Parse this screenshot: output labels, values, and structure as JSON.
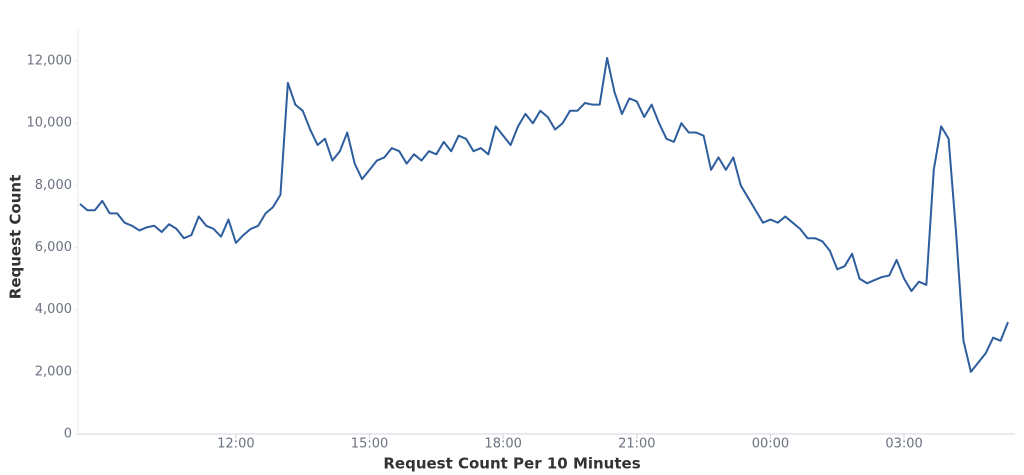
{
  "chart_data": {
    "type": "line",
    "x_label": "Request Count Per 10 Minutes",
    "y_label": "Request Count",
    "color": "#2e5e9e",
    "categories": [
      null,
      null,
      null,
      null,
      null,
      null,
      null,
      null,
      null,
      null,
      null,
      null,
      null,
      null,
      null,
      null,
      null,
      null,
      null,
      null,
      null,
      "12:00",
      null,
      null,
      null,
      null,
      null,
      null,
      null,
      null,
      null,
      null,
      null,
      null,
      null,
      null,
      null,
      null,
      null,
      "15:00",
      null,
      null,
      null,
      null,
      null,
      null,
      null,
      null,
      null,
      null,
      null,
      null,
      null,
      null,
      null,
      null,
      null,
      "18:00",
      null,
      null,
      null,
      null,
      null,
      null,
      null,
      null,
      null,
      null,
      null,
      null,
      null,
      null,
      null,
      null,
      null,
      "21:00",
      null,
      null,
      null,
      null,
      null,
      null,
      null,
      null,
      null,
      null,
      null,
      null,
      null,
      null,
      null,
      null,
      null,
      "00:00",
      null,
      null,
      null,
      null,
      null,
      null,
      null,
      null,
      null,
      null,
      null,
      null,
      null,
      null,
      null,
      null,
      null,
      "03:00",
      null,
      null,
      null,
      null,
      null,
      null,
      null,
      null,
      null,
      null,
      null,
      null,
      null,
      null
    ],
    "values": [
      7400,
      7200,
      7200,
      7500,
      7100,
      7100,
      6800,
      6700,
      6550,
      6650,
      6700,
      6500,
      6750,
      6600,
      6300,
      6400,
      7000,
      6700,
      6600,
      6350,
      6900,
      6150,
      6400,
      6600,
      6700,
      7100,
      7300,
      7700,
      11300,
      10600,
      10400,
      9800,
      9300,
      9500,
      8800,
      9100,
      9700,
      8700,
      8200,
      8500,
      8800,
      8900,
      9200,
      9100,
      8700,
      9000,
      8800,
      9100,
      9000,
      9400,
      9100,
      9600,
      9500,
      9100,
      9200,
      9000,
      9900,
      9600,
      9300,
      9900,
      10300,
      10000,
      10400,
      10200,
      9800,
      10000,
      10400,
      10400,
      10650,
      10600,
      10600,
      12100,
      11000,
      10300,
      10800,
      10700,
      10200,
      10600,
      10000,
      9500,
      9400,
      10000,
      9700,
      9700,
      9600,
      8500,
      8900,
      8500,
      8900,
      8000,
      7600,
      7200,
      6800,
      6900,
      6800,
      7000,
      6800,
      6600,
      6300,
      6300,
      6200,
      5900,
      5300,
      5400,
      5800,
      5000,
      4850,
      4950,
      5050,
      5100,
      5600,
      5000,
      4600,
      4900,
      4800,
      8500,
      9900,
      9500,
      6500,
      3000,
      2000,
      2300,
      2600,
      3100,
      3000,
      3600
    ],
    "ylim": [
      0,
      13000
    ],
    "yticks": [
      0,
      {
        "value": 2000,
        "label": "2,000"
      },
      {
        "value": 4000,
        "label": "4,000"
      },
      {
        "value": 6000,
        "label": "6,000"
      },
      {
        "value": 8000,
        "label": "8,000"
      },
      {
        "value": 10000,
        "label": "10,000"
      },
      {
        "value": 12000,
        "label": "12,000"
      }
    ]
  }
}
